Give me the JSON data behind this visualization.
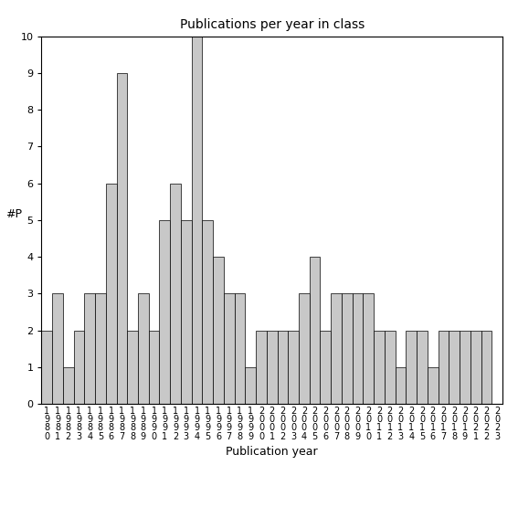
{
  "title": "Publications per year in class",
  "xlabel": "Publication year",
  "ylabel": "#P",
  "bar_color": "#c8c8c8",
  "bar_edgecolor": "#000000",
  "years": [
    "1980",
    "1981",
    "1982",
    "1983",
    "1984",
    "1985",
    "1986",
    "1987",
    "1988",
    "1989",
    "1990",
    "1991",
    "1992",
    "1993",
    "1994",
    "1995",
    "1996",
    "1997",
    "1998",
    "1999",
    "2000",
    "2001",
    "2002",
    "2003",
    "2004",
    "2005",
    "2006",
    "2007",
    "2008",
    "2009",
    "2010",
    "2011",
    "2012",
    "2013",
    "2014",
    "2015",
    "2016",
    "2017",
    "2018",
    "2019",
    "2021",
    "2022",
    "2023"
  ],
  "values": [
    2,
    3,
    1,
    2,
    3,
    3,
    6,
    9,
    2,
    3,
    2,
    5,
    6,
    5,
    10,
    5,
    4,
    3,
    3,
    1,
    2,
    2,
    2,
    2,
    3,
    4,
    2,
    3,
    3,
    3,
    3,
    2,
    2,
    1,
    2,
    2,
    1,
    2,
    2,
    2,
    2,
    2,
    0
  ],
  "ylim": [
    0,
    10
  ],
  "yticks": [
    0,
    1,
    2,
    3,
    4,
    5,
    6,
    7,
    8,
    9,
    10
  ],
  "title_fontsize": 10,
  "axis_label_fontsize": 9,
  "tick_fontsize": 8,
  "xtick_fontsize": 7,
  "bar_linewidth": 0.5,
  "background_color": "#ffffff"
}
